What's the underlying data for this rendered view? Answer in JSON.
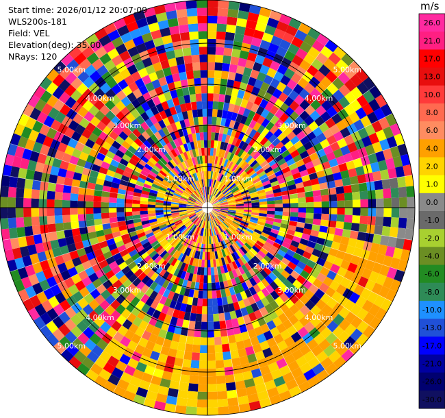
{
  "header": {
    "start_time": "Start time: 2026/01/12 20:07:09",
    "instrument": "WLS200s-181",
    "field": "Field: VEL",
    "elevation": "Elevation(deg): 35.00",
    "nrays": "NRays: 120"
  },
  "colorbar": {
    "unit": "m/s",
    "ticks": [
      "26.0",
      "21.0",
      "17.0",
      "13.0",
      "10.0",
      "8.0",
      "6.0",
      "4.0",
      "2.0",
      "1.0",
      "0.0",
      "-1.0",
      "-2.0",
      "-4.0",
      "-6.0",
      "-8.0",
      "-10.0",
      "-13.0",
      "-17.0",
      "-21.0",
      "-26.0",
      "-30.0"
    ],
    "colors": [
      "#ff2aa0",
      "#ff1f82",
      "#ff0000",
      "#e80e0e",
      "#ff3a3a",
      "#ff6a50",
      "#ff8c60",
      "#ffa000",
      "#ffd400",
      "#ffff00",
      "#8a8a8a",
      "#6a6a6a",
      "#a8d030",
      "#6b8e23",
      "#228b22",
      "#2e8b57",
      "#1e90ff",
      "#2050d8",
      "#0000ff",
      "#0000a0",
      "#000070",
      "#101060"
    ]
  },
  "chart_data": {
    "type": "ppi",
    "field": "VEL",
    "range_rings": [
      "1.00km",
      "2.00km",
      "3.00km",
      "4.00km",
      "5.00km"
    ],
    "color_scale_ticks_mps": [
      26.0,
      21.0,
      17.0,
      13.0,
      10.0,
      8.0,
      6.0,
      4.0,
      2.0,
      1.0,
      0.0,
      -1.0,
      -2.0,
      -4.0,
      -6.0,
      -8.0,
      -10.0,
      -13.0,
      -17.0,
      -21.0,
      -26.0,
      -30.0
    ],
    "max_range_km": 5.0,
    "nrays": 120
  }
}
